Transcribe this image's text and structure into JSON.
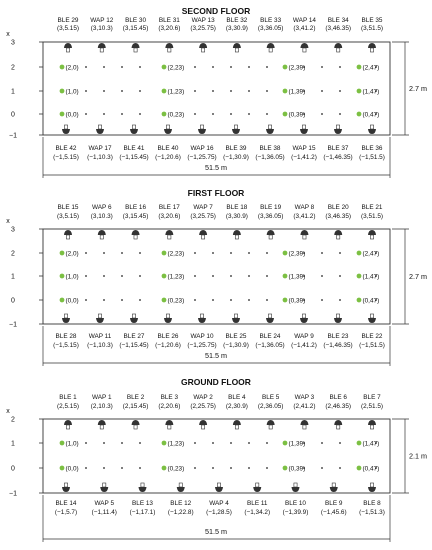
{
  "colors": {
    "point": "#7cc043",
    "line": "#333333",
    "grid_dot": "#222222"
  },
  "icons": {
    "sensor": "sensor-icon",
    "point": "reference-point-marker"
  },
  "floors": [
    {
      "id": "second",
      "title": "SECOND FLOOR",
      "width_label": "51.5 m",
      "height_label": "2.7 m",
      "axis_label": "x",
      "y_ticks": [
        "3",
        "2",
        "1",
        "0",
        "−1"
      ],
      "top_sensors": [
        {
          "name": "BLE 29",
          "coord": "(3,5.15)"
        },
        {
          "name": "WAP 12",
          "coord": "(3,10.3)"
        },
        {
          "name": "BLE 30",
          "coord": "(3,15.45)"
        },
        {
          "name": "BLE 31",
          "coord": "(3,20.6)"
        },
        {
          "name": "WAP 13",
          "coord": "(3,25.75)"
        },
        {
          "name": "BLE 32",
          "coord": "(3,30.9)"
        },
        {
          "name": "BLE 33",
          "coord": "(3,36.05)"
        },
        {
          "name": "WAP 14",
          "coord": "(3,41.2)"
        },
        {
          "name": "BLE 34",
          "coord": "(3,46.35)"
        },
        {
          "name": "BLE 35",
          "coord": "(3,51.5)"
        }
      ],
      "bottom_sensors": [
        {
          "name": "BLE 42",
          "coord": "(−1,5.15)"
        },
        {
          "name": "WAP 17",
          "coord": "(−1,10.3)"
        },
        {
          "name": "BLE 41",
          "coord": "(−1,15.45)"
        },
        {
          "name": "BLE 40",
          "coord": "(−1,20.6)"
        },
        {
          "name": "WAP 16",
          "coord": "(−1,25.75)"
        },
        {
          "name": "BLE 39",
          "coord": "(−1,30.9)"
        },
        {
          "name": "BLE 38",
          "coord": "(−1,36.05)"
        },
        {
          "name": "WAP 15",
          "coord": "(−1,41.2)"
        },
        {
          "name": "BLE 37",
          "coord": "(−1,46.35)"
        },
        {
          "name": "BLE 36",
          "coord": "(−1,51.5)"
        }
      ],
      "rows": [
        {
          "y": 2,
          "points": [
            "(2,0)",
            "(2,23)",
            "(2,39)",
            "(2,47)"
          ]
        },
        {
          "y": 1,
          "points": [
            "(1,0)",
            "(1,23)",
            "(1,39)",
            "(1,47)"
          ]
        },
        {
          "y": 0,
          "points": [
            "(0,0)",
            "(0,23)",
            "(0,39)",
            "(0,47)"
          ]
        }
      ]
    },
    {
      "id": "first",
      "title": "FIRST FLOOR",
      "width_label": "51.5 m",
      "height_label": "2.7 m",
      "axis_label": "x",
      "y_ticks": [
        "3",
        "2",
        "1",
        "0",
        "−1"
      ],
      "top_sensors": [
        {
          "name": "BLE 15",
          "coord": "(3,5.15)"
        },
        {
          "name": "WAP 6",
          "coord": "(3,10.3)"
        },
        {
          "name": "BLE 16",
          "coord": "(3,15.45)"
        },
        {
          "name": "BLE 17",
          "coord": "(3,20.6)"
        },
        {
          "name": "WAP 7",
          "coord": "(3,25.75)"
        },
        {
          "name": "BLE 18",
          "coord": "(3,30.9)"
        },
        {
          "name": "BLE 19",
          "coord": "(3,36.05)"
        },
        {
          "name": "WAP 8",
          "coord": "(3,41.2)"
        },
        {
          "name": "BLE 20",
          "coord": "(3,46.35)"
        },
        {
          "name": "BLE 21",
          "coord": "(3,51.5)"
        }
      ],
      "bottom_sensors": [
        {
          "name": "BLE 28",
          "coord": "(−1,5.15)"
        },
        {
          "name": "WAP 11",
          "coord": "(−1,10.3)"
        },
        {
          "name": "BLE 27",
          "coord": "(−1,15.45)"
        },
        {
          "name": "BLE 26",
          "coord": "(−1,20.6)"
        },
        {
          "name": "WAP 10",
          "coord": "(−1,25.75)"
        },
        {
          "name": "BLE 25",
          "coord": "(−1,30.9)"
        },
        {
          "name": "BLE 24",
          "coord": "(−1,36.05)"
        },
        {
          "name": "WAP 9",
          "coord": "(−1,41.2)"
        },
        {
          "name": "BLE 23",
          "coord": "(−1,46.35)"
        },
        {
          "name": "BLE 22",
          "coord": "(−1,51.5)"
        }
      ],
      "rows": [
        {
          "y": 2,
          "points": [
            "(2,0)",
            "(2,23)",
            "(2,39)",
            "(2,47)"
          ]
        },
        {
          "y": 1,
          "points": [
            "(1,0)",
            "(1,23)",
            "(1,39)",
            "(1,47)"
          ]
        },
        {
          "y": 0,
          "points": [
            "(0,0)",
            "(0,23)",
            "(0,39)",
            "(0,47)"
          ]
        }
      ]
    },
    {
      "id": "ground",
      "title": "GROUND FLOOR",
      "width_label": "51.5 m",
      "height_label": "2.1 m",
      "axis_label": "x",
      "y_ticks": [
        "2",
        "1",
        "0",
        "−1"
      ],
      "top_sensors": [
        {
          "name": "BLE 1",
          "coord": "(2,5.15)"
        },
        {
          "name": "WAP 1",
          "coord": "(2,10.3)"
        },
        {
          "name": "BLE 2",
          "coord": "(2,15.45)"
        },
        {
          "name": "BLE 3",
          "coord": "(2,20.6)"
        },
        {
          "name": "WAP 2",
          "coord": "(2,25.75)"
        },
        {
          "name": "BLE 4",
          "coord": "(2,30.9)"
        },
        {
          "name": "BLE 5",
          "coord": "(2,36.05)"
        },
        {
          "name": "WAP 3",
          "coord": "(2,41.2)"
        },
        {
          "name": "BLE 6",
          "coord": "(2,46.35)"
        },
        {
          "name": "BLE 7",
          "coord": "(2,51.5)"
        }
      ],
      "bottom_sensors": [
        {
          "name": "BLE 14",
          "coord": "(−1,5.7)"
        },
        {
          "name": "WAP 5",
          "coord": "(−1,11.4)"
        },
        {
          "name": "BLE 13",
          "coord": "(−1,17.1)"
        },
        {
          "name": "BLE 12",
          "coord": "(−1,22.8)"
        },
        {
          "name": "WAP 4",
          "coord": "(−1,28.5)"
        },
        {
          "name": "BLE 11",
          "coord": "(−1,34.2)"
        },
        {
          "name": "BLE 10",
          "coord": "(−1,39.9)"
        },
        {
          "name": "BLE 9",
          "coord": "(−1,45.6)"
        },
        {
          "name": "BLE 8",
          "coord": "(−1,51.3)"
        }
      ],
      "rows": [
        {
          "y": 1,
          "points": [
            "(1,0)",
            "(1,23)",
            "(1,39)",
            "(1,47)"
          ]
        },
        {
          "y": 0,
          "points": [
            "(0,0)",
            "(0,23)",
            "(0,39)",
            "(0,47)"
          ]
        }
      ]
    }
  ]
}
